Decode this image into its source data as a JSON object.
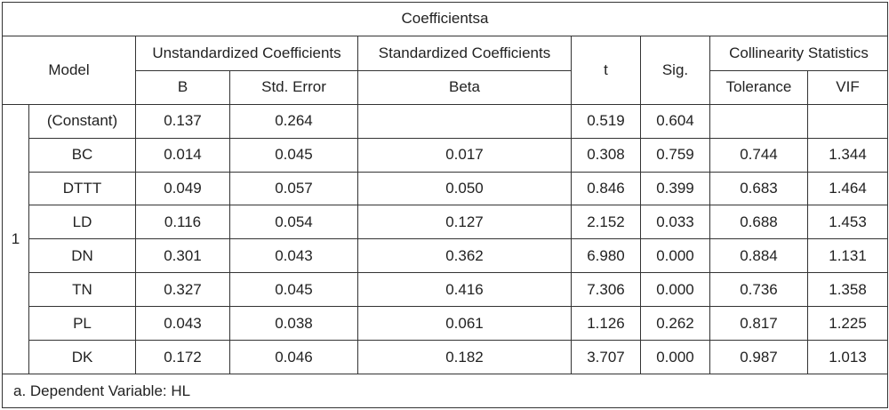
{
  "title": "Coefficientsa",
  "headers": {
    "model": "Model",
    "unstandardized": "Unstandardized Coefficients",
    "standardized": "Standardized Coefficients",
    "t": "t",
    "sig": "Sig.",
    "collinearity": "Collinearity Statistics",
    "b": "B",
    "std_error": "Std. Error",
    "beta": "Beta",
    "tolerance": "Tolerance",
    "vif": "VIF"
  },
  "model_number": "1",
  "rows": [
    {
      "name": "(Constant)",
      "b": "0.137",
      "se": "0.264",
      "beta": "",
      "t": "0.519",
      "sig": "0.604",
      "tol": "",
      "vif": ""
    },
    {
      "name": "BC",
      "b": "0.014",
      "se": "0.045",
      "beta": "0.017",
      "t": "0.308",
      "sig": "0.759",
      "tol": "0.744",
      "vif": "1.344"
    },
    {
      "name": "DTTT",
      "b": "0.049",
      "se": "0.057",
      "beta": "0.050",
      "t": "0.846",
      "sig": "0.399",
      "tol": "0.683",
      "vif": "1.464"
    },
    {
      "name": "LD",
      "b": "0.116",
      "se": "0.054",
      "beta": "0.127",
      "t": "2.152",
      "sig": "0.033",
      "tol": "0.688",
      "vif": "1.453"
    },
    {
      "name": "DN",
      "b": "0.301",
      "se": "0.043",
      "beta": "0.362",
      "t": "6.980",
      "sig": "0.000",
      "tol": "0.884",
      "vif": "1.131"
    },
    {
      "name": "TN",
      "b": "0.327",
      "se": "0.045",
      "beta": "0.416",
      "t": "7.306",
      "sig": "0.000",
      "tol": "0.736",
      "vif": "1.358"
    },
    {
      "name": "PL",
      "b": "0.043",
      "se": "0.038",
      "beta": "0.061",
      "t": "1.126",
      "sig": "0.262",
      "tol": "0.817",
      "vif": "1.225"
    },
    {
      "name": "DK",
      "b": "0.172",
      "se": "0.046",
      "beta": "0.182",
      "t": "3.707",
      "sig": "0.000",
      "tol": "0.987",
      "vif": "1.013"
    }
  ],
  "footnote": "a. Dependent Variable: HL"
}
